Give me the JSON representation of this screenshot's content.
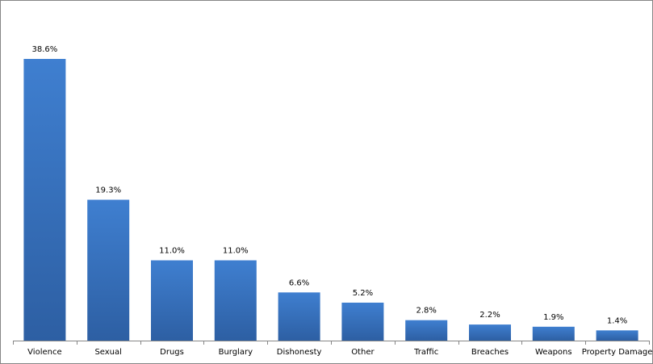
{
  "chart_data": {
    "type": "bar",
    "categories": [
      "Violence",
      "Sexual",
      "Drugs",
      "Burglary",
      "Dishonesty",
      "Other",
      "Traffic",
      "Breaches",
      "Weapons",
      "Property Damage"
    ],
    "values": [
      38.6,
      19.3,
      11.0,
      11.0,
      6.6,
      5.2,
      2.8,
      2.2,
      1.9,
      1.4
    ],
    "value_labels": [
      "38.6%",
      "19.3%",
      "11.0%",
      "11.0%",
      "6.6%",
      "5.2%",
      "2.8%",
      "2.2%",
      "1.9%",
      "1.4%"
    ],
    "color": "#3f7fd0"
  }
}
